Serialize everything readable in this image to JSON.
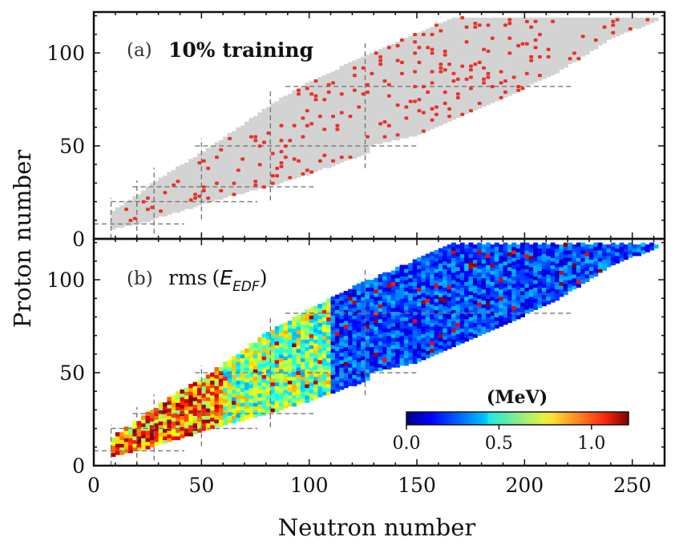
{
  "chart_data": [
    {
      "type": "scatter",
      "panel": "a",
      "tag": "(a)",
      "title": "10% training",
      "xlabel": "Neutron number",
      "ylabel": "Proton number",
      "xlim": [
        0,
        265
      ],
      "ylim": [
        0,
        122
      ],
      "xticks": [
        0,
        50,
        100,
        150,
        200,
        250
      ],
      "yticks": [
        0,
        50,
        100
      ],
      "yticklabels": [
        "0",
        "50",
        "100"
      ],
      "region_color": "#d3d3d3",
      "point_color": "#e8322b",
      "description_series": [
        {
          "name": "nuclide region",
          "kind": "shaded band"
        },
        {
          "name": "training nuclei (10%)",
          "kind": "red points"
        }
      ]
    },
    {
      "type": "heatmap",
      "panel": "b",
      "tag": "(b)",
      "title_main": "rms",
      "title_symbol": "E",
      "title_subscript": "EDF",
      "xlabel": "Neutron number",
      "ylabel": "Proton number",
      "xlim": [
        0,
        265
      ],
      "ylim": [
        0,
        122
      ],
      "xticks": [
        0,
        50,
        100,
        150,
        200,
        250
      ],
      "xticklabels": [
        "0",
        "50",
        "100",
        "150",
        "200",
        "250"
      ],
      "yticks": [
        0,
        50,
        100
      ],
      "yticklabels": [
        "0",
        "50",
        "100"
      ],
      "colorbar": {
        "label": "(MeV)",
        "range": [
          0.0,
          1.2
        ],
        "ticks": [
          0.0,
          0.5,
          1.0
        ],
        "ticklabels": [
          "0.0",
          "0.5",
          "1.0"
        ],
        "colormap": "jet",
        "placement": "lower-right"
      }
    }
  ],
  "magic_numbers": [
    8,
    20,
    28,
    50,
    82,
    126
  ],
  "region_bounds": {
    "z_min_by_n": [
      [
        8,
        5
      ],
      [
        20,
        8
      ],
      [
        40,
        15
      ],
      [
        60,
        22
      ],
      [
        80,
        28
      ],
      [
        100,
        35
      ],
      [
        126,
        46
      ],
      [
        128,
        50
      ],
      [
        150,
        56
      ],
      [
        170,
        66
      ],
      [
        190,
        76
      ],
      [
        215,
        90
      ],
      [
        240,
        108
      ],
      [
        262,
        118
      ]
    ],
    "z_max_by_n": [
      [
        8,
        14
      ],
      [
        16,
        20
      ],
      [
        30,
        32
      ],
      [
        50,
        46
      ],
      [
        70,
        62
      ],
      [
        82,
        72
      ],
      [
        100,
        84
      ],
      [
        126,
        98
      ],
      [
        150,
        110
      ],
      [
        165,
        118
      ],
      [
        262,
        118
      ]
    ]
  }
}
